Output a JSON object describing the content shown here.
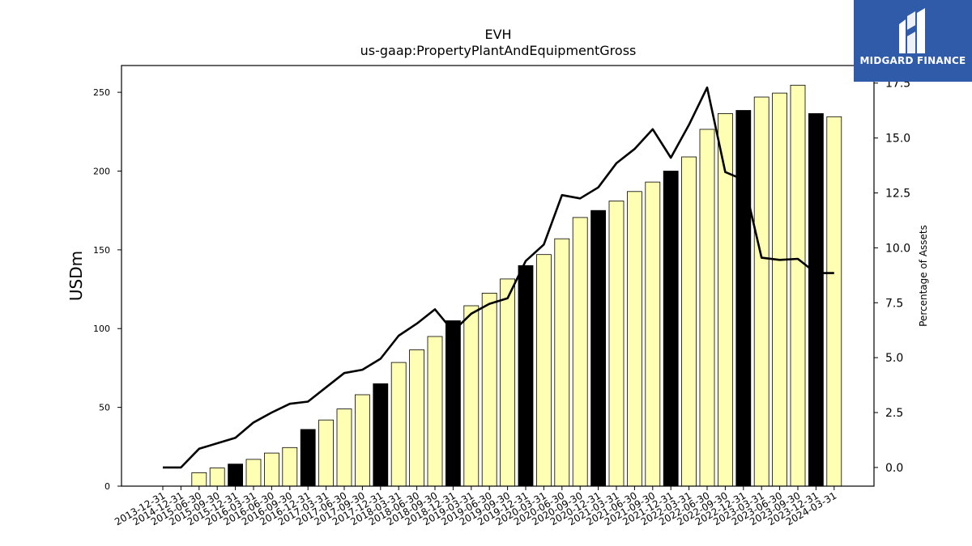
{
  "chart_data": {
    "type": "bar",
    "title": "EVH",
    "subtitle": "us-gaap:PropertyPlantAndEquipmentGross",
    "ylabel": "USDm",
    "y2label": "Percentage of Assets",
    "ylim": [
      0,
      267
    ],
    "y2lim": [
      -0.85,
      18.3
    ],
    "yticks": [
      0,
      50,
      100,
      150,
      200,
      250
    ],
    "y2ticks": [
      "0.0",
      "2.5",
      "5.0",
      "7.5",
      "10.0",
      "12.5",
      "15.0",
      "17.5"
    ],
    "grid": false,
    "categories": [
      "2013-12-31",
      "2014-12-31",
      "2015-06-30",
      "2015-09-30",
      "2015-12-31",
      "2016-03-31",
      "2016-06-30",
      "2016-09-30",
      "2016-12-31",
      "2017-03-31",
      "2017-06-30",
      "2017-09-30",
      "2017-12-31",
      "2018-03-31",
      "2018-06-30",
      "2018-09-30",
      "2018-12-31",
      "2019-03-31",
      "2019-06-30",
      "2019-09-30",
      "2019-12-31",
      "2020-03-31",
      "2020-06-30",
      "2020-09-30",
      "2020-12-31",
      "2021-03-31",
      "2021-06-30",
      "2021-09-30",
      "2021-12-31",
      "2022-03-31",
      "2022-06-30",
      "2022-09-30",
      "2022-12-31",
      "2023-03-31",
      "2023-06-30",
      "2023-09-30",
      "2023-12-31",
      "2024-03-31"
    ],
    "series": [
      {
        "kind": "bar",
        "values": [
          0,
          0,
          8.5,
          11.5,
          14,
          17,
          21,
          24.5,
          36,
          42,
          49,
          58,
          65,
          78.5,
          86.5,
          95,
          105,
          114.5,
          122.5,
          131.5,
          140,
          147,
          157,
          170.5,
          175,
          181,
          187,
          193,
          200,
          209,
          226.5,
          236.5,
          238.5,
          247,
          249.5,
          254.5,
          236.5,
          234.5
        ],
        "highlight": [
          false,
          false,
          false,
          false,
          true,
          false,
          false,
          false,
          true,
          false,
          false,
          false,
          true,
          false,
          false,
          false,
          true,
          false,
          false,
          false,
          true,
          false,
          false,
          false,
          true,
          false,
          false,
          false,
          true,
          false,
          false,
          false,
          true,
          false,
          false,
          false,
          true,
          false
        ],
        "color": "#ffffb3",
        "highlight_color": "#000000"
      },
      {
        "kind": "line",
        "axis": "right",
        "values": [
          0.0,
          0.0,
          0.85,
          1.1,
          1.35,
          2.05,
          2.5,
          2.9,
          3.0,
          3.65,
          4.3,
          4.45,
          4.95,
          6.0,
          6.55,
          7.2,
          6.2,
          7.0,
          7.45,
          7.7,
          9.4,
          10.15,
          12.4,
          12.25,
          12.75,
          13.85,
          14.5,
          15.4,
          14.1,
          15.6,
          17.3,
          13.45,
          13.1,
          9.55,
          9.45,
          9.5,
          8.85,
          8.85
        ],
        "color": "#000000"
      }
    ]
  },
  "logo": {
    "brand": "MIDGARD FINANCE"
  }
}
